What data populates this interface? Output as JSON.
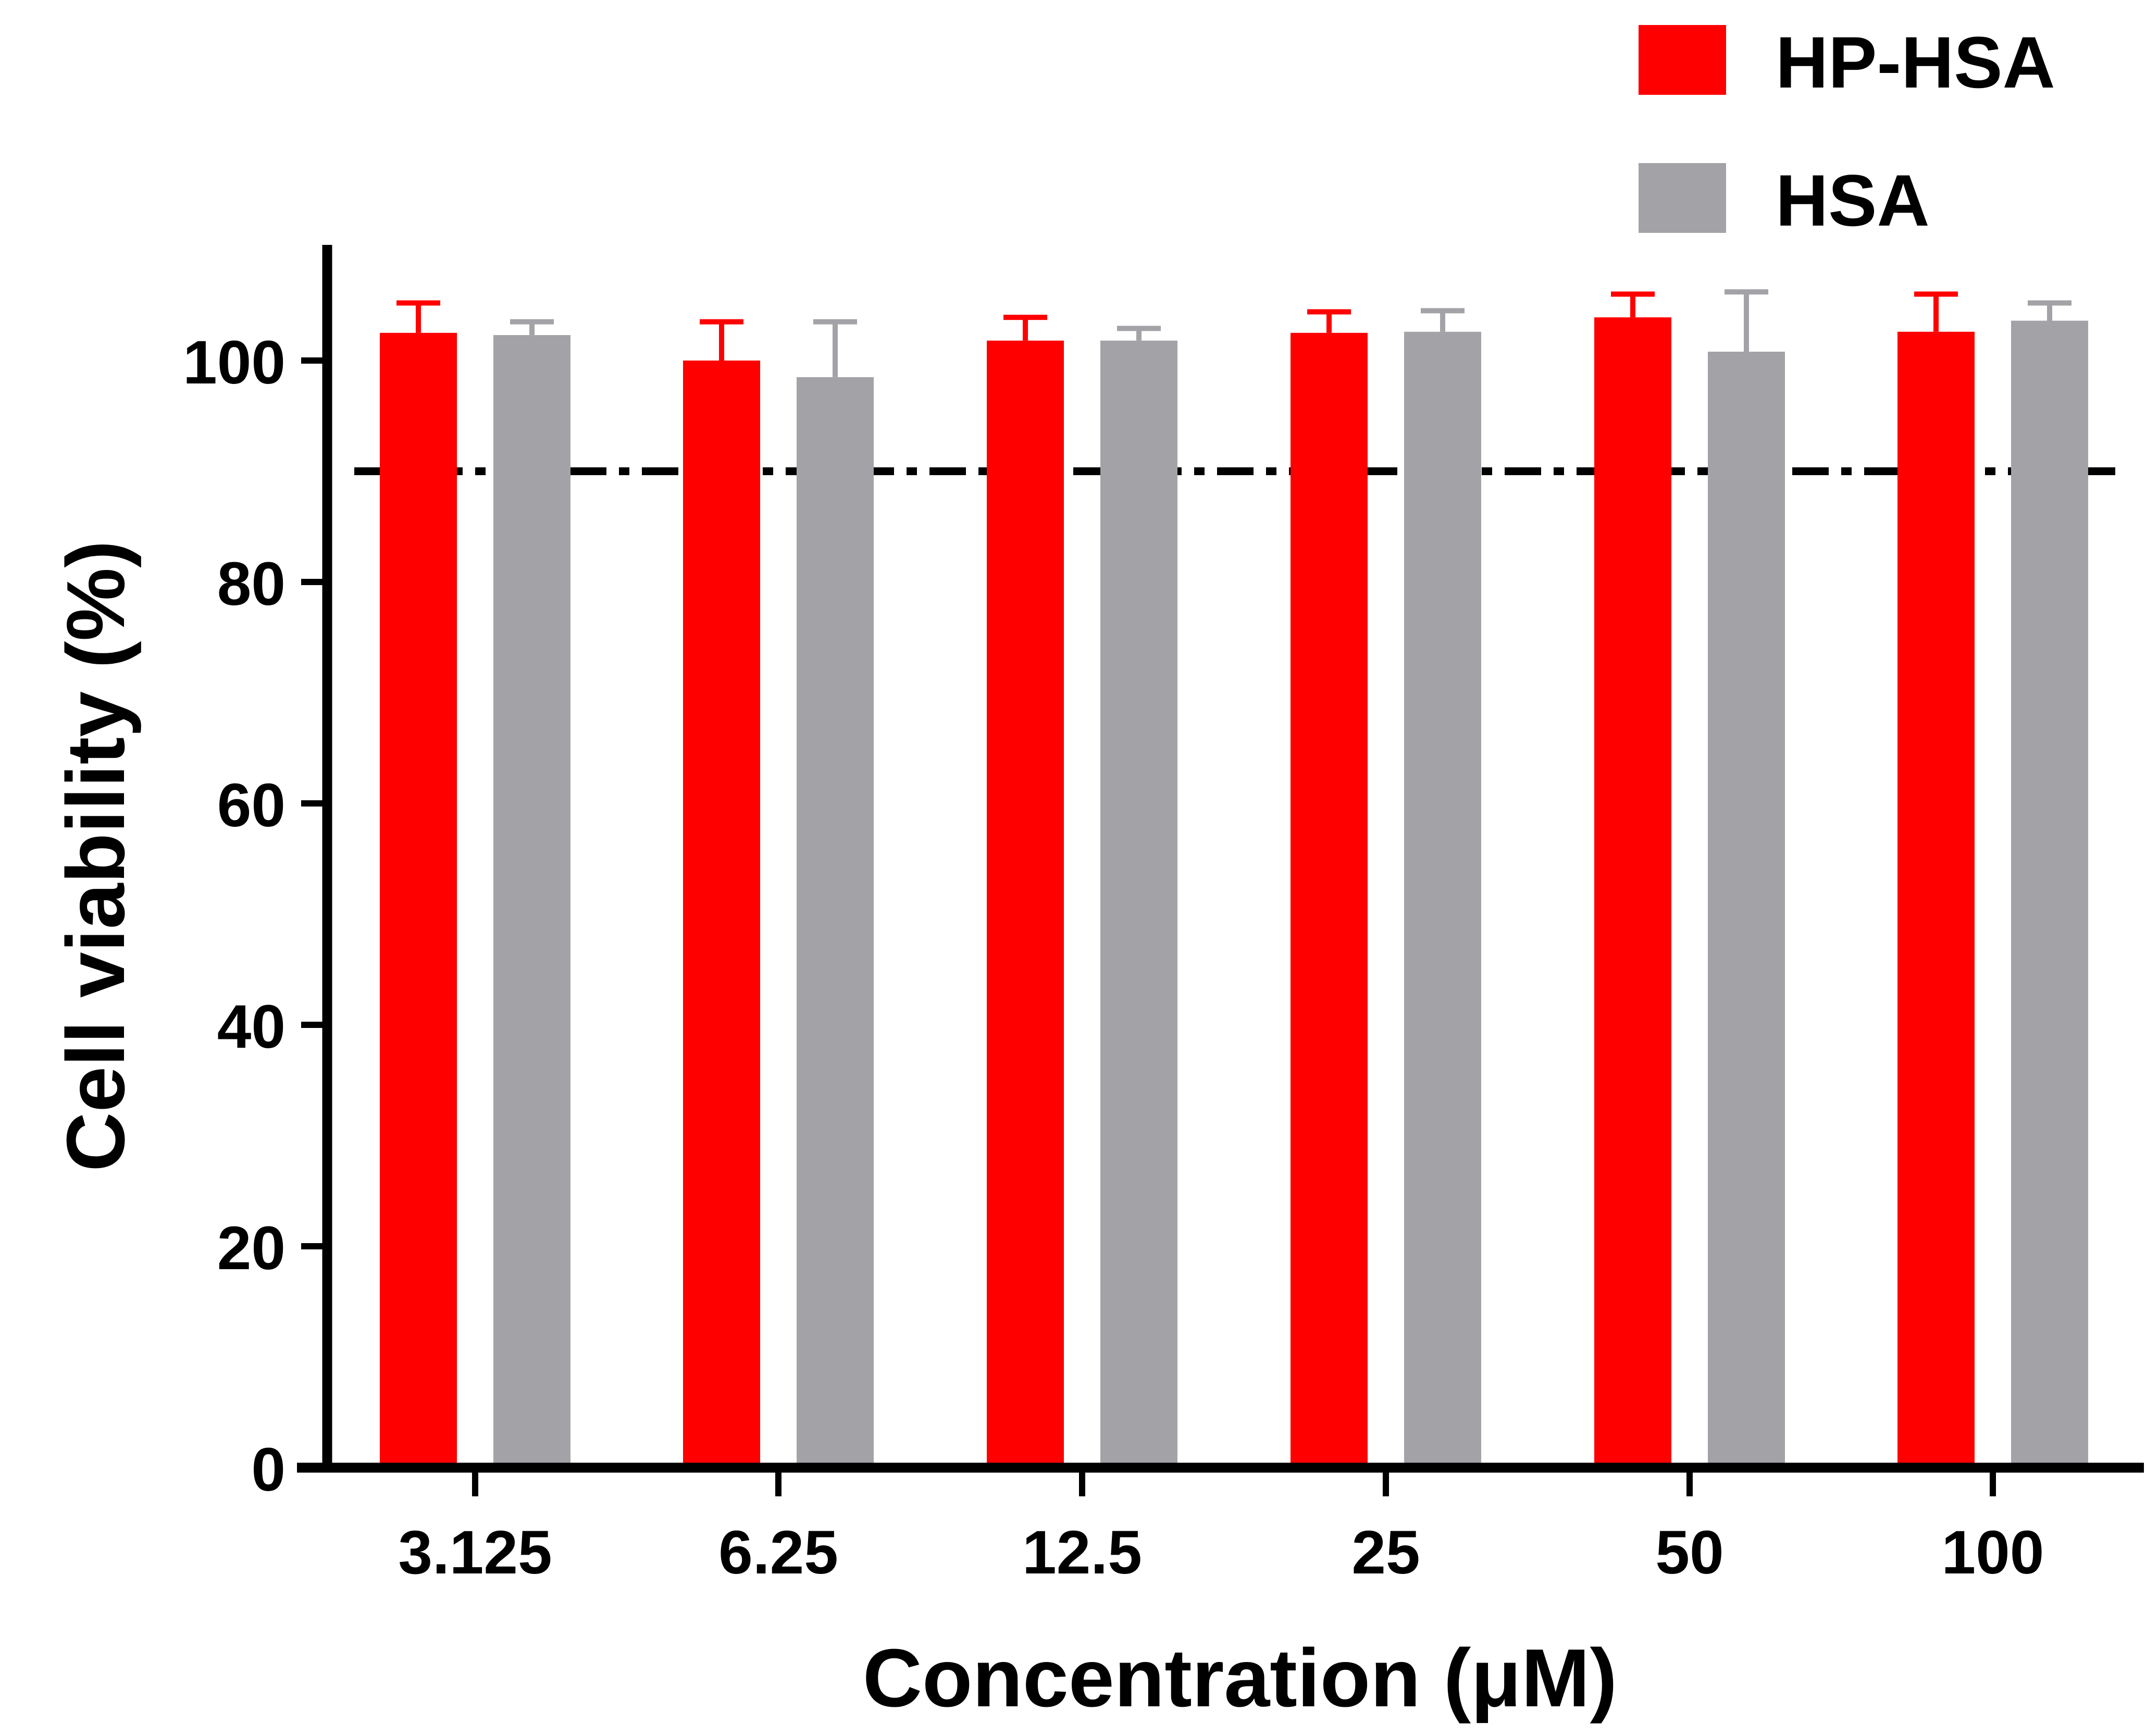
{
  "chart_data": {
    "type": "bar",
    "title": "",
    "xlabel": "Concentration (μM)",
    "ylabel": "Cell viability (%)",
    "categories": [
      "3.125",
      "6.25",
      "12.5",
      "25",
      "50",
      "100"
    ],
    "ylim": [
      0,
      110
    ],
    "yticks": [
      0,
      20,
      40,
      60,
      80,
      100
    ],
    "reference_line": {
      "y": 90,
      "style": "dashed"
    },
    "legend_position": "top-right",
    "error_bars": "positive only",
    "series": [
      {
        "name": "HP-HSA",
        "color": "#ff0000",
        "values": [
          102.5,
          100.0,
          101.8,
          102.5,
          103.9,
          102.6
        ],
        "errors": [
          2.7,
          3.5,
          2.1,
          1.9,
          2.1,
          3.4
        ]
      },
      {
        "name": "HSA",
        "color": "#a3a2a7",
        "values": [
          102.3,
          98.5,
          101.8,
          102.6,
          100.8,
          103.6
        ],
        "errors": [
          1.2,
          5.0,
          1.1,
          1.9,
          5.4,
          1.6
        ]
      }
    ]
  }
}
